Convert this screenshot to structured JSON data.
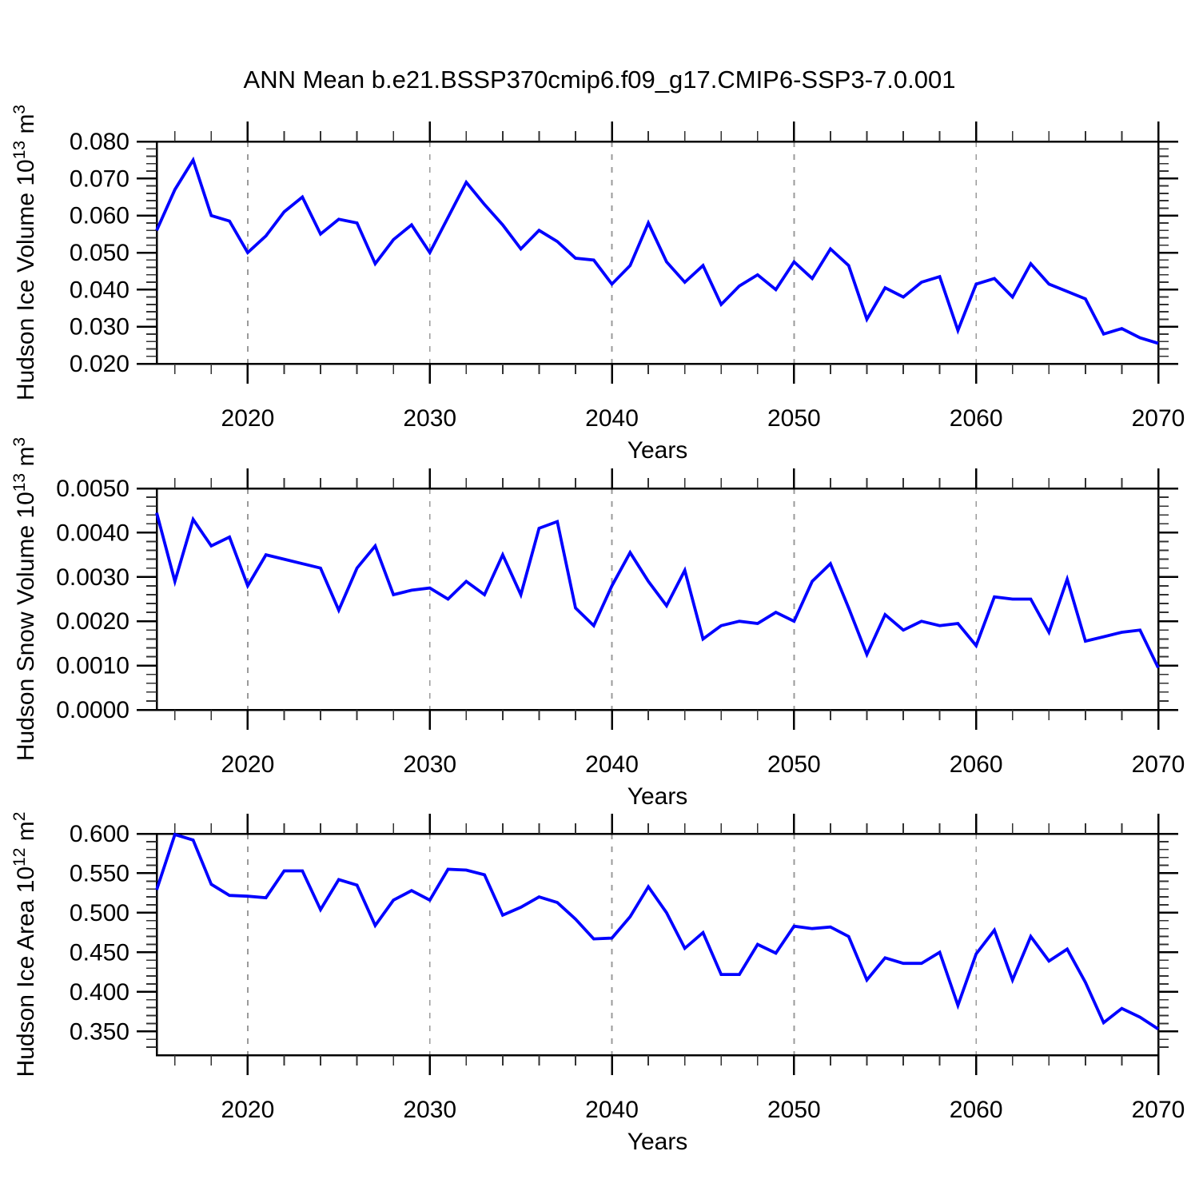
{
  "title": "ANN Mean b.e21.BSSP370cmip6.f09_g17.CMIP6-SSP3-7.0.001",
  "colors": {
    "line": "#0000ff",
    "axis": "#000000",
    "minor_tick": "#333333",
    "grid_dash": "#9a9a9a",
    "background": "#ffffff"
  },
  "chart_data": [
    {
      "type": "line",
      "title": "ANN Mean b.e21.BSSP370cmip6.f09_g17.CMIP6-SSP3-7.0.001",
      "ylabel": "Hudson Ice Volume 10^13 m^3",
      "ylabel_segments": [
        {
          "text": "Hudson Ice Volume 10",
          "sup": false
        },
        {
          "text": "13",
          "sup": true
        },
        {
          "text": " m",
          "sup": false
        },
        {
          "text": "3",
          "sup": true
        }
      ],
      "xlabel": "Years",
      "legend_position": "none",
      "grid": "vertical-dashed",
      "xlim": [
        2015,
        2070
      ],
      "ylim": [
        0.02,
        0.08
      ],
      "xtick_values": [
        2020,
        2030,
        2040,
        2050,
        2060,
        2070
      ],
      "xtick_labels": [
        "2020",
        "2030",
        "2040",
        "2050",
        "2060",
        "2070"
      ],
      "x_minor_step": 2,
      "grid_x": [
        2020,
        2030,
        2040,
        2050,
        2060
      ],
      "ytick_values": [
        0.02,
        0.03,
        0.04,
        0.05,
        0.06,
        0.07,
        0.08
      ],
      "ytick_labels": [
        "0.020",
        "0.030",
        "0.040",
        "0.050",
        "0.060",
        "0.070",
        "0.080"
      ],
      "y_minor_step": 0.002,
      "x": [
        2015,
        2016,
        2017,
        2018,
        2019,
        2020,
        2021,
        2022,
        2023,
        2024,
        2025,
        2026,
        2027,
        2028,
        2029,
        2030,
        2031,
        2032,
        2033,
        2034,
        2035,
        2036,
        2037,
        2038,
        2039,
        2040,
        2041,
        2042,
        2043,
        2044,
        2045,
        2046,
        2047,
        2048,
        2049,
        2050,
        2051,
        2052,
        2053,
        2054,
        2055,
        2056,
        2057,
        2058,
        2059,
        2060,
        2061,
        2062,
        2063,
        2064,
        2065,
        2066,
        2067,
        2068,
        2069,
        2070
      ],
      "values": [
        0.056,
        0.067,
        0.075,
        0.06,
        0.0585,
        0.05,
        0.0545,
        0.061,
        0.065,
        0.055,
        0.059,
        0.058,
        0.047,
        0.0535,
        0.0575,
        0.05,
        0.0595,
        0.069,
        0.063,
        0.0575,
        0.051,
        0.056,
        0.053,
        0.0485,
        0.048,
        0.0415,
        0.0465,
        0.058,
        0.0475,
        0.042,
        0.0465,
        0.036,
        0.041,
        0.044,
        0.04,
        0.0475,
        0.043,
        0.051,
        0.0465,
        0.032,
        0.0405,
        0.038,
        0.042,
        0.0435,
        0.029,
        0.0415,
        0.043,
        0.038,
        0.047,
        0.0415,
        0.0395,
        0.0375,
        0.028,
        0.0295,
        0.027,
        0.0255
      ]
    },
    {
      "type": "line",
      "title": "",
      "ylabel": "Hudson Snow Volume 10^13 m^3",
      "ylabel_segments": [
        {
          "text": "Hudson Snow Volume 10",
          "sup": false
        },
        {
          "text": "13",
          "sup": true
        },
        {
          "text": " m",
          "sup": false
        },
        {
          "text": "3",
          "sup": true
        }
      ],
      "xlabel": "Years",
      "legend_position": "none",
      "grid": "vertical-dashed",
      "xlim": [
        2015,
        2070
      ],
      "ylim": [
        0.0,
        0.005
      ],
      "xtick_values": [
        2020,
        2030,
        2040,
        2050,
        2060,
        2070
      ],
      "xtick_labels": [
        "2020",
        "2030",
        "2040",
        "2050",
        "2060",
        "2070"
      ],
      "x_minor_step": 2,
      "grid_x": [
        2020,
        2030,
        2040,
        2050,
        2060
      ],
      "ytick_values": [
        0.0,
        0.001,
        0.002,
        0.003,
        0.004,
        0.005
      ],
      "ytick_labels": [
        "0.0000",
        "0.0010",
        "0.0020",
        "0.0030",
        "0.0040",
        "0.0050"
      ],
      "y_minor_step": 0.0002,
      "x": [
        2015,
        2016,
        2017,
        2018,
        2019,
        2020,
        2021,
        2022,
        2023,
        2024,
        2025,
        2026,
        2027,
        2028,
        2029,
        2030,
        2031,
        2032,
        2033,
        2034,
        2035,
        2036,
        2037,
        2038,
        2039,
        2040,
        2041,
        2042,
        2043,
        2044,
        2045,
        2046,
        2047,
        2048,
        2049,
        2050,
        2051,
        2052,
        2053,
        2054,
        2055,
        2056,
        2057,
        2058,
        2059,
        2060,
        2061,
        2062,
        2063,
        2064,
        2065,
        2066,
        2067,
        2068,
        2069,
        2070
      ],
      "values": [
        0.00445,
        0.0029,
        0.0043,
        0.0037,
        0.0039,
        0.0028,
        0.0035,
        0.0034,
        0.0033,
        0.0032,
        0.00225,
        0.0032,
        0.0037,
        0.0026,
        0.0027,
        0.00275,
        0.0025,
        0.0029,
        0.0026,
        0.0035,
        0.0026,
        0.0041,
        0.00425,
        0.0023,
        0.0019,
        0.0028,
        0.00355,
        0.0029,
        0.00235,
        0.00315,
        0.0016,
        0.0019,
        0.002,
        0.00195,
        0.0022,
        0.002,
        0.0029,
        0.0033,
        0.0023,
        0.00125,
        0.00215,
        0.0018,
        0.002,
        0.0019,
        0.00195,
        0.00145,
        0.00255,
        0.0025,
        0.0025,
        0.00175,
        0.00295,
        0.00155,
        0.00165,
        0.00175,
        0.0018,
        0.00095
      ]
    },
    {
      "type": "line",
      "title": "",
      "ylabel": "Hudson Ice Area 10^12 m^2",
      "ylabel_segments": [
        {
          "text": "Hudson Ice Area 10",
          "sup": false
        },
        {
          "text": "12",
          "sup": true
        },
        {
          "text": " m",
          "sup": false
        },
        {
          "text": "2",
          "sup": true
        }
      ],
      "xlabel": "Years",
      "legend_position": "none",
      "grid": "vertical-dashed",
      "xlim": [
        2015,
        2070
      ],
      "ylim": [
        0.32,
        0.6
      ],
      "xtick_values": [
        2020,
        2030,
        2040,
        2050,
        2060,
        2070
      ],
      "xtick_labels": [
        "2020",
        "2030",
        "2040",
        "2050",
        "2060",
        "2070"
      ],
      "x_minor_step": 2,
      "grid_x": [
        2020,
        2030,
        2040,
        2050,
        2060
      ],
      "ytick_values": [
        0.35,
        0.4,
        0.45,
        0.5,
        0.55,
        0.6
      ],
      "ytick_labels": [
        "0.350",
        "0.400",
        "0.450",
        "0.500",
        "0.550",
        "0.600"
      ],
      "y_minor_step": 0.01,
      "x": [
        2015,
        2016,
        2017,
        2018,
        2019,
        2020,
        2021,
        2022,
        2023,
        2024,
        2025,
        2026,
        2027,
        2028,
        2029,
        2030,
        2031,
        2032,
        2033,
        2034,
        2035,
        2036,
        2037,
        2038,
        2039,
        2040,
        2041,
        2042,
        2043,
        2044,
        2045,
        2046,
        2047,
        2048,
        2049,
        2050,
        2051,
        2052,
        2053,
        2054,
        2055,
        2056,
        2057,
        2058,
        2059,
        2060,
        2061,
        2062,
        2063,
        2064,
        2065,
        2066,
        2067,
        2068,
        2069,
        2070
      ],
      "values": [
        0.529,
        0.599,
        0.592,
        0.536,
        0.522,
        0.521,
        0.519,
        0.553,
        0.553,
        0.504,
        0.542,
        0.535,
        0.484,
        0.516,
        0.528,
        0.516,
        0.555,
        0.554,
        0.548,
        0.497,
        0.507,
        0.52,
        0.513,
        0.492,
        0.467,
        0.468,
        0.495,
        0.533,
        0.5,
        0.455,
        0.475,
        0.422,
        0.422,
        0.46,
        0.449,
        0.483,
        0.48,
        0.482,
        0.47,
        0.415,
        0.443,
        0.436,
        0.436,
        0.45,
        0.383,
        0.448,
        0.478,
        0.415,
        0.47,
        0.439,
        0.454,
        0.412,
        0.361,
        0.379,
        0.368,
        0.353
      ]
    }
  ]
}
